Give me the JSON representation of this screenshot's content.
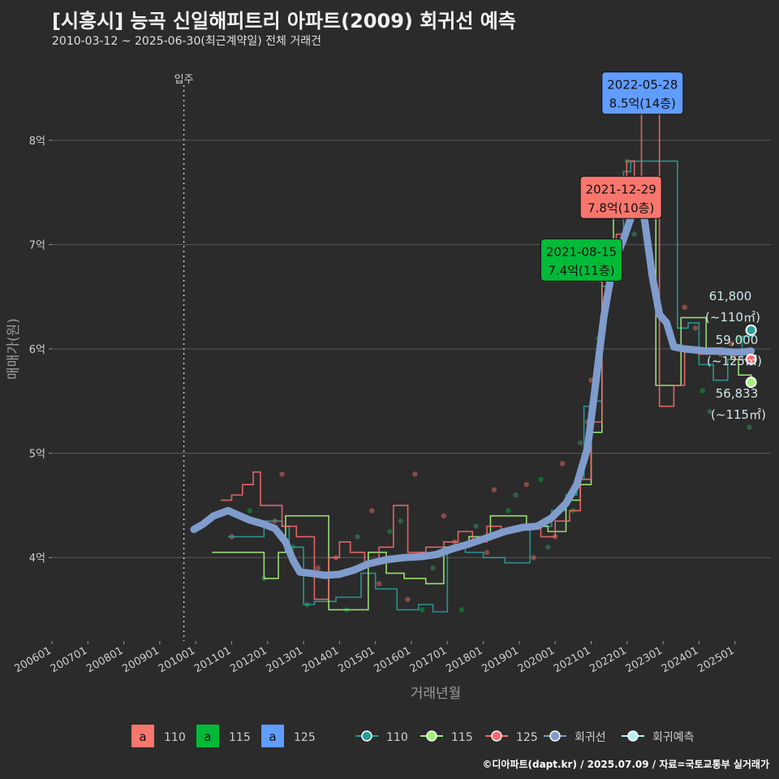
{
  "title": "[시흥시] 능곡 신일해피트리 아파트(2009) 회귀선 예측",
  "subtitle": "2010-03-12 ~ 2025-06-30(최근계약일) 전체 거래건",
  "footer": "©디아파트(dapt.kr) / 2025.07.09 / 자료=국토교통부 실거래가",
  "colors": {
    "bg": "#2b2b2b",
    "grid": "#5a5a5a",
    "s110": "#f8766d",
    "s115": "#00ba38",
    "s125": "#619cff",
    "line110": "#2a9d9a",
    "line115": "#a3f07a",
    "line125": "#f5696b",
    "regression": "#7f9ccc",
    "forecast": "#b7f0f0"
  },
  "chart_data": {
    "type": "line",
    "xlabel": "거래년월",
    "ylabel": "매매가(원)",
    "xlim": [
      2006.0,
      2026.0
    ],
    "ylim": [
      3.2,
      8.8
    ],
    "x_ticks": [
      "200601",
      "200701",
      "200801",
      "200901",
      "201001",
      "201101",
      "201201",
      "201301",
      "201401",
      "201501",
      "201601",
      "201701",
      "201801",
      "201901",
      "202001",
      "202101",
      "202201",
      "202301",
      "202401",
      "202501"
    ],
    "y_ticks": [
      {
        "v": 4,
        "label": "4억"
      },
      {
        "v": 5,
        "label": "5억"
      },
      {
        "v": 6,
        "label": "6억"
      },
      {
        "v": 7,
        "label": "7억"
      },
      {
        "v": 8,
        "label": "8억"
      }
    ],
    "move_in": {
      "x": 2009.67,
      "label": "입주"
    },
    "regression": [
      [
        2009.95,
        4.27
      ],
      [
        2010.2,
        4.32
      ],
      [
        2010.5,
        4.4
      ],
      [
        2010.9,
        4.45
      ],
      [
        2011.1,
        4.42
      ],
      [
        2011.5,
        4.36
      ],
      [
        2011.9,
        4.32
      ],
      [
        2012.2,
        4.28
      ],
      [
        2012.5,
        4.15
      ],
      [
        2012.7,
        3.98
      ],
      [
        2012.9,
        3.86
      ],
      [
        2013.2,
        3.85
      ],
      [
        2013.6,
        3.83
      ],
      [
        2014.0,
        3.84
      ],
      [
        2014.4,
        3.88
      ],
      [
        2014.8,
        3.94
      ],
      [
        2015.3,
        3.98
      ],
      [
        2015.8,
        4.0
      ],
      [
        2016.3,
        4.01
      ],
      [
        2016.7,
        4.03
      ],
      [
        2017.1,
        4.08
      ],
      [
        2017.6,
        4.13
      ],
      [
        2018.1,
        4.19
      ],
      [
        2018.6,
        4.25
      ],
      [
        2019.1,
        4.29
      ],
      [
        2019.5,
        4.3
      ],
      [
        2019.9,
        4.38
      ],
      [
        2020.3,
        4.52
      ],
      [
        2020.6,
        4.7
      ],
      [
        2020.9,
        5.05
      ],
      [
        2021.1,
        5.6
      ],
      [
        2021.35,
        6.3
      ],
      [
        2021.6,
        6.8
      ],
      [
        2021.9,
        7.05
      ],
      [
        2022.15,
        7.3
      ],
      [
        2022.35,
        7.55
      ],
      [
        2022.5,
        7.2
      ],
      [
        2022.7,
        6.7
      ],
      [
        2022.9,
        6.33
      ],
      [
        2023.1,
        6.25
      ],
      [
        2023.3,
        6.02
      ],
      [
        2023.6,
        6.0
      ],
      [
        2023.9,
        5.99
      ],
      [
        2024.2,
        5.98
      ],
      [
        2024.6,
        5.98
      ],
      [
        2024.9,
        5.97
      ],
      [
        2025.2,
        5.97
      ],
      [
        2025.45,
        5.98
      ]
    ],
    "series": [
      {
        "name": "110",
        "color": "#2a9d9a",
        "values": [
          [
            2010.9,
            4.2
          ],
          [
            2011.1,
            4.2
          ],
          [
            2011.9,
            4.35
          ],
          [
            2012.4,
            4.3
          ],
          [
            2012.6,
            4.1
          ],
          [
            2013.0,
            3.55
          ],
          [
            2013.3,
            3.58
          ],
          [
            2013.9,
            3.62
          ],
          [
            2014.6,
            3.85
          ],
          [
            2015.0,
            3.7
          ],
          [
            2015.6,
            3.5
          ],
          [
            2016.2,
            3.55
          ],
          [
            2016.6,
            3.48
          ],
          [
            2017.0,
            4.1
          ],
          [
            2017.5,
            4.05
          ],
          [
            2018.0,
            4.0
          ],
          [
            2018.6,
            3.95
          ],
          [
            2019.3,
            4.3
          ],
          [
            2019.9,
            4.45
          ],
          [
            2020.3,
            4.6
          ],
          [
            2020.6,
            4.75
          ],
          [
            2020.8,
            5.45
          ],
          [
            2021.0,
            5.5
          ],
          [
            2021.3,
            6.6
          ],
          [
            2021.6,
            7.05
          ],
          [
            2021.9,
            7.7
          ],
          [
            2022.1,
            7.8
          ],
          [
            2022.3,
            7.8
          ],
          [
            2023.4,
            6.2
          ],
          [
            2023.7,
            6.25
          ],
          [
            2024.0,
            5.85
          ],
          [
            2024.4,
            5.7
          ],
          [
            2024.8,
            5.9
          ],
          [
            2025.2,
            6.12
          ],
          [
            2025.45,
            6.18
          ]
        ]
      },
      {
        "name": "115",
        "color": "#a3f07a",
        "values": [
          [
            2010.45,
            4.05
          ],
          [
            2010.8,
            4.05
          ],
          [
            2011.9,
            3.8
          ],
          [
            2012.3,
            4.05
          ],
          [
            2012.5,
            4.4
          ],
          [
            2013.7,
            3.5
          ],
          [
            2014.2,
            3.5
          ],
          [
            2014.8,
            4.05
          ],
          [
            2015.3,
            3.85
          ],
          [
            2015.8,
            3.8
          ],
          [
            2016.4,
            3.75
          ],
          [
            2016.9,
            4.1
          ],
          [
            2017.6,
            4.2
          ],
          [
            2018.2,
            4.4
          ],
          [
            2018.7,
            4.4
          ],
          [
            2019.2,
            4.3
          ],
          [
            2019.8,
            4.25
          ],
          [
            2020.3,
            4.55
          ],
          [
            2020.7,
            4.7
          ],
          [
            2021.0,
            5.2
          ],
          [
            2021.3,
            6.78
          ],
          [
            2021.62,
            7.4
          ],
          [
            2021.9,
            7.5
          ],
          [
            2022.8,
            5.65
          ],
          [
            2023.5,
            6.3
          ],
          [
            2024.2,
            6.0
          ],
          [
            2024.9,
            5.9
          ],
          [
            2025.1,
            5.75
          ],
          [
            2025.45,
            5.68
          ]
        ]
      },
      {
        "name": "125",
        "color": "#f5696b",
        "values": [
          [
            2010.7,
            4.55
          ],
          [
            2011.0,
            4.6
          ],
          [
            2011.3,
            4.7
          ],
          [
            2011.6,
            4.82
          ],
          [
            2011.8,
            4.5
          ],
          [
            2012.4,
            4.3
          ],
          [
            2012.8,
            4.2
          ],
          [
            2013.3,
            3.6
          ],
          [
            2013.7,
            4.0
          ],
          [
            2014.0,
            4.15
          ],
          [
            2014.3,
            4.05
          ],
          [
            2014.7,
            3.95
          ],
          [
            2015.1,
            4.1
          ],
          [
            2015.5,
            4.5
          ],
          [
            2015.9,
            4.05
          ],
          [
            2016.4,
            4.1
          ],
          [
            2016.9,
            4.15
          ],
          [
            2017.3,
            4.25
          ],
          [
            2017.7,
            4.15
          ],
          [
            2018.1,
            4.3
          ],
          [
            2018.5,
            4.25
          ],
          [
            2019.0,
            4.3
          ],
          [
            2019.6,
            4.2
          ],
          [
            2020.0,
            4.35
          ],
          [
            2020.4,
            4.45
          ],
          [
            2020.7,
            4.75
          ],
          [
            2021.0,
            5.3
          ],
          [
            2021.3,
            6.85
          ],
          [
            2021.7,
            7.1
          ],
          [
            2021.99,
            7.8
          ],
          [
            2022.2,
            7.5
          ],
          [
            2022.4,
            8.5
          ],
          [
            2022.6,
            8.5
          ],
          [
            2022.9,
            5.45
          ],
          [
            2023.3,
            5.65
          ],
          [
            2023.6,
            6.0
          ],
          [
            2024.0,
            5.95
          ],
          [
            2024.6,
            5.95
          ],
          [
            2025.0,
            5.9
          ],
          [
            2025.45,
            5.9
          ]
        ]
      }
    ],
    "scatter": [
      [
        2011.0,
        4.2
      ],
      [
        2011.5,
        4.45
      ],
      [
        2011.9,
        3.8
      ],
      [
        2012.2,
        4.35
      ],
      [
        2012.4,
        4.8
      ],
      [
        2012.7,
        4.1
      ],
      [
        2013.1,
        3.55
      ],
      [
        2013.4,
        3.9
      ],
      [
        2013.9,
        4.0
      ],
      [
        2014.2,
        3.5
      ],
      [
        2014.5,
        4.2
      ],
      [
        2014.9,
        4.45
      ],
      [
        2015.1,
        3.75
      ],
      [
        2015.4,
        4.25
      ],
      [
        2015.7,
        4.35
      ],
      [
        2015.9,
        3.6
      ],
      [
        2016.1,
        4.8
      ],
      [
        2016.3,
        3.5
      ],
      [
        2016.6,
        3.9
      ],
      [
        2016.9,
        4.4
      ],
      [
        2017.2,
        4.15
      ],
      [
        2017.4,
        3.5
      ],
      [
        2017.8,
        4.3
      ],
      [
        2018.1,
        4.05
      ],
      [
        2018.3,
        4.65
      ],
      [
        2018.7,
        4.45
      ],
      [
        2018.9,
        4.6
      ],
      [
        2019.2,
        4.7
      ],
      [
        2019.4,
        4.0
      ],
      [
        2019.6,
        4.75
      ],
      [
        2019.8,
        4.1
      ],
      [
        2020.0,
        4.2
      ],
      [
        2020.2,
        4.9
      ],
      [
        2020.5,
        4.45
      ],
      [
        2020.7,
        5.1
      ],
      [
        2020.9,
        5.3
      ],
      [
        2021.0,
        5.7
      ],
      [
        2021.2,
        6.1
      ],
      [
        2021.4,
        6.5
      ],
      [
        2021.7,
        6.9
      ],
      [
        2021.9,
        7.4
      ],
      [
        2022.0,
        7.8
      ],
      [
        2022.2,
        7.1
      ],
      [
        2023.6,
        6.4
      ],
      [
        2023.9,
        6.2
      ],
      [
        2024.1,
        5.6
      ],
      [
        2024.3,
        5.4
      ],
      [
        2024.6,
        5.95
      ],
      [
        2024.9,
        6.05
      ],
      [
        2025.1,
        6.1
      ],
      [
        2025.4,
        5.25
      ]
    ],
    "annotations": [
      {
        "x": 2022.41,
        "y": 8.5,
        "date": "2022-05-28",
        "price": "8.5억(14층)",
        "color": "#619cff",
        "lx": 2021.3,
        "ly": 8.25
      },
      {
        "x": 2021.99,
        "y": 7.8,
        "date": "2021-12-29",
        "price": "7.8억(10층)",
        "color": "#f8766d",
        "lx": 2020.7,
        "ly": 7.25
      },
      {
        "x": 2021.62,
        "y": 7.4,
        "date": "2021-08-15",
        "price": "7.4억(11층)",
        "color": "#00ba38",
        "lx": 2019.6,
        "ly": 6.65
      }
    ],
    "end_points": [
      {
        "series": "110",
        "y": 6.18,
        "value": "61,800",
        "area": "(~110㎡)",
        "color": "#2a9d9a"
      },
      {
        "series": "125",
        "y": 5.9,
        "value": "59,000",
        "area": "(~125㎡)",
        "color": "#f5696b"
      },
      {
        "series": "115",
        "y": 5.68,
        "value": "56,833",
        "area": "(~115㎡)",
        "color": "#a3f07a"
      }
    ],
    "legend": {
      "boxes": [
        {
          "label": "110",
          "color": "#f8766d"
        },
        {
          "label": "115",
          "color": "#00ba38"
        },
        {
          "label": "125",
          "color": "#619cff"
        }
      ],
      "box_glyph": "a",
      "lines": [
        {
          "label": "110",
          "color": "#2a9d9a"
        },
        {
          "label": "115",
          "color": "#a3f07a"
        },
        {
          "label": "125",
          "color": "#f5696b"
        },
        {
          "label": "회귀선",
          "color": "#7f9ccc"
        },
        {
          "label": "회귀예측",
          "color": "#b7f0f0"
        }
      ]
    }
  }
}
